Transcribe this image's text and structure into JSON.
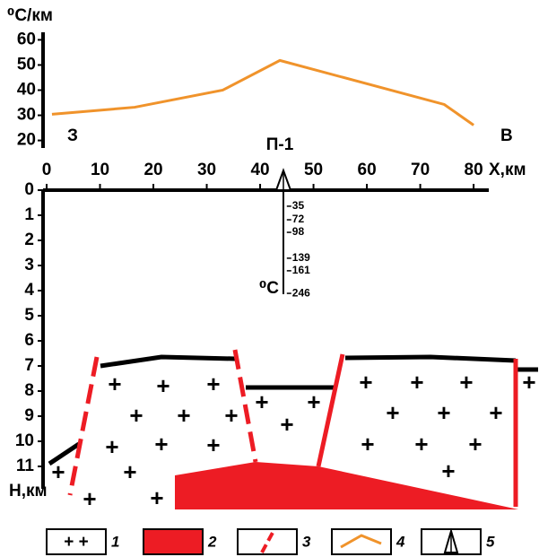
{
  "chart_data": {
    "type": "line",
    "y_label": "⁰C/км",
    "x_label": "X,км",
    "x": [
      1,
      16.5,
      33,
      43.7,
      74.5,
      80
    ],
    "values": [
      30.4,
      33.2,
      40,
      51.8,
      34.3,
      26.1
    ],
    "color": "#f0932b",
    "xlim": [
      0,
      82
    ],
    "xticks": [
      0,
      10,
      20,
      30,
      40,
      50,
      60,
      70,
      80
    ],
    "ylim": [
      17,
      63
    ],
    "yticks": [
      20,
      30,
      40,
      50,
      60
    ],
    "west_label": "З",
    "east_label": "В"
  },
  "section": {
    "depth_label": "Н,км",
    "depth_lim": [
      0,
      11
    ],
    "depth_ticks": [
      0,
      1,
      2,
      3,
      4,
      5,
      6,
      7,
      8,
      9,
      10,
      11
    ],
    "well": {
      "label": "П-1",
      "x": 45,
      "temp_unit": "⁰C",
      "temperatures": [
        35,
        72,
        98,
        139,
        161,
        246
      ],
      "depths": [
        0.64,
        1.18,
        1.68,
        2.71,
        3.21,
        4.11
      ]
    }
  },
  "legend": [
    "1",
    "2",
    "3",
    "4",
    "5"
  ]
}
